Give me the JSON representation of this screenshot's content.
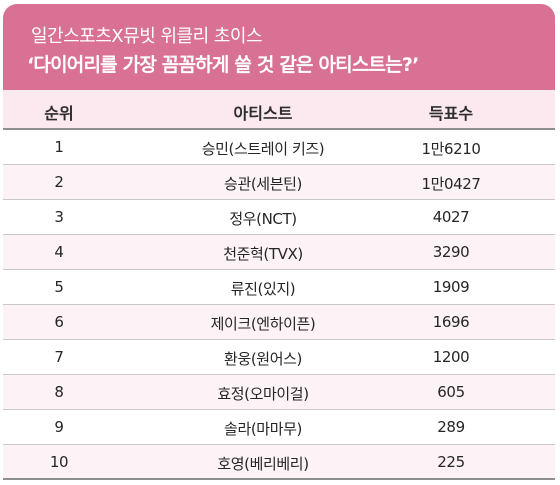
{
  "header": {
    "title": "일간스포츠X뮤빗 위클리 초이스",
    "question": "‘다이어리를 가장 꼼꼼하게 쓸 것 같은 아티스트는?’"
  },
  "columns": {
    "rank": "순위",
    "artist": "아티스트",
    "votes": "득표수"
  },
  "rows": [
    {
      "rank": "1",
      "artist": "승민(스트레이 키즈)",
      "votes": "1만6210"
    },
    {
      "rank": "2",
      "artist": "승관(세븐틴)",
      "votes": "1만0427"
    },
    {
      "rank": "3",
      "artist": "정우(NCT)",
      "votes": "4027"
    },
    {
      "rank": "4",
      "artist": "천준혁(TVX)",
      "votes": "3290"
    },
    {
      "rank": "5",
      "artist": "류진(있지)",
      "votes": "1909"
    },
    {
      "rank": "6",
      "artist": "제이크(엔하이픈)",
      "votes": "1696"
    },
    {
      "rank": "7",
      "artist": "환웅(원어스)",
      "votes": "1200"
    },
    {
      "rank": "8",
      "artist": "효정(오마이걸)",
      "votes": "605"
    },
    {
      "rank": "9",
      "artist": "솔라(마마무)",
      "votes": "289"
    },
    {
      "rank": "10",
      "artist": "호영(베리베리)",
      "votes": "225"
    }
  ],
  "colors": {
    "header_bg": "#d97195",
    "column_header_bg": "#fbe9ef",
    "alt_row_bg": "#fdf3f6"
  }
}
